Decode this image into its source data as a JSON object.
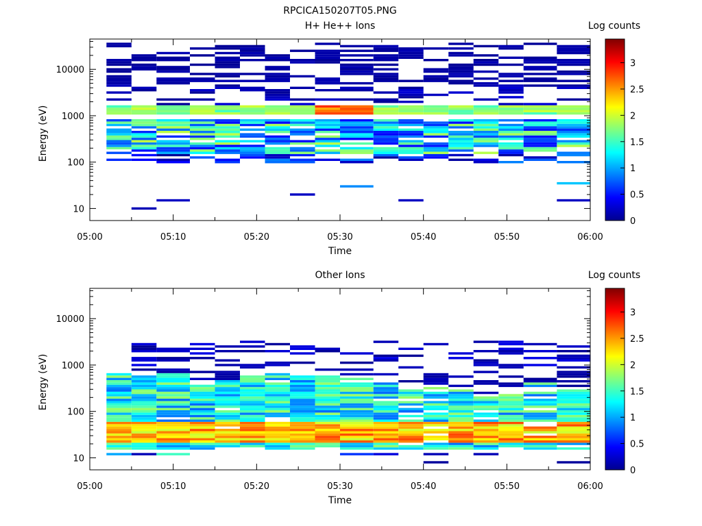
{
  "figure_title": "RPCICA150207T05.PNG",
  "chart_data": [
    {
      "type": "heatmap",
      "title": "H+ He++ Ions",
      "xlabel": "Time",
      "ylabel": "Energy (eV)",
      "x_ticks": [
        "05:00",
        "05:10",
        "05:20",
        "05:30",
        "05:40",
        "05:50",
        "06:00"
      ],
      "x_range": [
        "05:00",
        "06:00"
      ],
      "y_scale": "log",
      "y_ticks": [
        10,
        100,
        1000,
        10000
      ],
      "y_tick_labels": [
        "10",
        "100",
        "1000",
        "10000"
      ],
      "ylim": [
        5.5,
        45000
      ],
      "colorbar": {
        "label": "Log counts",
        "ticks": [
          0,
          0.5,
          1,
          1.5,
          2,
          2.5,
          3
        ],
        "tick_labels": [
          "0",
          "0.5",
          "1",
          "1.5",
          "2",
          "2.5",
          "3"
        ],
        "range": [
          0,
          3.45
        ]
      },
      "time_bins_start": [
        "05:02",
        "05:05",
        "05:08",
        "05:12",
        "05:15",
        "05:18",
        "05:21",
        "05:24",
        "05:27",
        "05:30",
        "05:34",
        "05:37",
        "05:40",
        "05:43",
        "05:46",
        "05:49",
        "05:52",
        "05:56"
      ],
      "profile": {
        "sparse_energy_range": [
          5000,
          38000
        ],
        "energy_line": {
          "energy": 1300,
          "value": 2.0,
          "peak_bins": [
            8,
            9
          ],
          "peak_value": 2.9
        },
        "core_energy_range": [
          150,
          800
        ],
        "core_value": 1.7,
        "low_energy_events": [
          [
            10,
            1,
            0.15
          ],
          [
            15,
            2,
            0.2
          ],
          [
            15,
            11,
            0.2
          ],
          [
            15,
            17,
            0.2
          ],
          [
            20,
            7,
            0.2
          ],
          [
            30,
            9,
            0.9
          ],
          [
            35,
            17,
            1.1
          ]
        ]
      }
    },
    {
      "type": "heatmap",
      "title": "Other Ions",
      "xlabel": "Time",
      "ylabel": "Energy (eV)",
      "x_ticks": [
        "05:00",
        "05:10",
        "05:20",
        "05:30",
        "05:40",
        "05:50",
        "06:00"
      ],
      "x_range": [
        "05:00",
        "06:00"
      ],
      "y_scale": "log",
      "y_ticks": [
        10,
        100,
        1000,
        10000
      ],
      "y_tick_labels": [
        "10",
        "100",
        "1000",
        "10000"
      ],
      "ylim": [
        5.5,
        45000
      ],
      "colorbar": {
        "label": "Log counts",
        "ticks": [
          0,
          0.5,
          1,
          1.5,
          2,
          2.5,
          3
        ],
        "tick_labels": [
          "0",
          "0.5",
          "1",
          "1.5",
          "2",
          "2.5",
          "3"
        ],
        "range": [
          0,
          3.45
        ]
      },
      "time_bins_start": [
        "05:02",
        "05:05",
        "05:08",
        "05:12",
        "05:15",
        "05:18",
        "05:21",
        "05:24",
        "05:27",
        "05:30",
        "05:34",
        "05:37",
        "05:40",
        "05:43",
        "05:46",
        "05:49",
        "05:52",
        "05:56"
      ],
      "profile": {
        "upper_edge_eV": [
          700,
          600,
          650,
          500,
          450,
          600,
          700,
          650,
          600,
          550,
          500,
          300,
          350,
          300,
          200,
          250,
          400,
          300
        ],
        "peak_energy_range": [
          20,
          60
        ],
        "peak_value": 2.8,
        "mid_value": 1.3,
        "sparse_energy_range": [
          1000,
          3500
        ],
        "low_energy_events": [
          [
            12,
            0,
            1.0
          ],
          [
            12,
            1,
            0.15
          ],
          [
            12,
            2,
            1.5
          ],
          [
            12,
            9,
            0.6
          ],
          [
            12,
            10,
            0.3
          ],
          [
            12,
            12,
            0.15
          ],
          [
            12,
            14,
            0.15
          ],
          [
            8,
            12,
            0.05
          ],
          [
            8,
            17,
            0.05
          ]
        ]
      }
    }
  ]
}
